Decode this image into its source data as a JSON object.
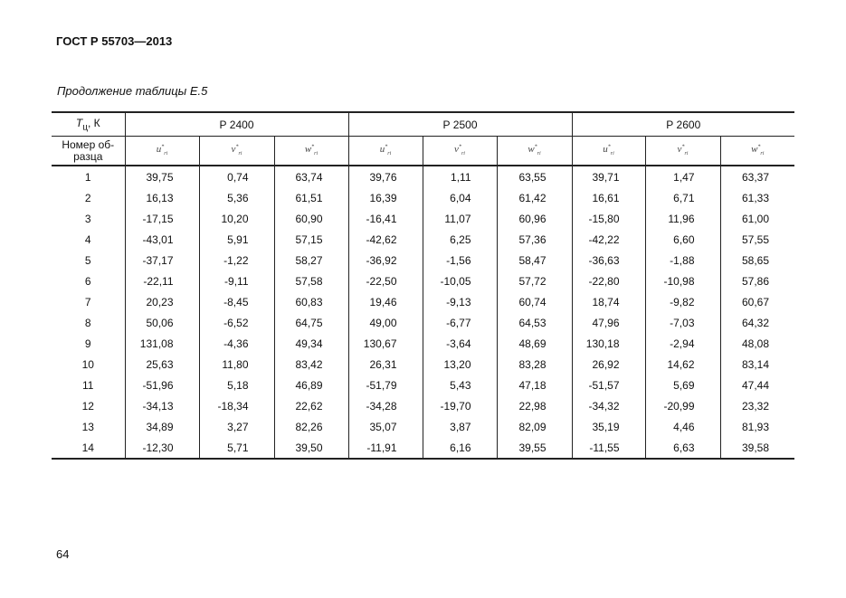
{
  "header": {
    "title": "ГОСТ Р 55703—2013"
  },
  "caption": "Продолжение таблицы Е.5",
  "table": {
    "corner": {
      "main": "T",
      "sub": "ц",
      "rest": ", К"
    },
    "row_label": "Номер об-\nразца",
    "groups": [
      "Р 2400",
      "Р 2500",
      "Р 2600"
    ],
    "columns": [
      {
        "base": "u",
        "sup": "*",
        "sub": "ri"
      },
      {
        "base": "v",
        "sup": "*",
        "sub": "ri"
      },
      {
        "base": "w",
        "sup": "*",
        "sub": "ri"
      },
      {
        "base": "u",
        "sup": "*",
        "sub": "ri"
      },
      {
        "base": "v",
        "sup": "*",
        "sub": "ri"
      },
      {
        "base": "w",
        "sup": "*",
        "sub": "ri"
      },
      {
        "base": "u",
        "sup": "*",
        "sub": "ri"
      },
      {
        "base": "v",
        "sup": "*",
        "sub": "ri"
      },
      {
        "base": "w",
        "sup": "*",
        "sub": "ri"
      }
    ],
    "rows": [
      [
        "1",
        "39,75",
        "0,74",
        "63,74",
        "39,76",
        "1,11",
        "63,55",
        "39,71",
        "1,47",
        "63,37"
      ],
      [
        "2",
        "16,13",
        "5,36",
        "61,51",
        "16,39",
        "6,04",
        "61,42",
        "16,61",
        "6,71",
        "61,33"
      ],
      [
        "3",
        "-17,15",
        "10,20",
        "60,90",
        "-16,41",
        "11,07",
        "60,96",
        "-15,80",
        "11,96",
        "61,00"
      ],
      [
        "4",
        "-43,01",
        "5,91",
        "57,15",
        "-42,62",
        "6,25",
        "57,36",
        "-42,22",
        "6,60",
        "57,55"
      ],
      [
        "5",
        "-37,17",
        "-1,22",
        "58,27",
        "-36,92",
        "-1,56",
        "58,47",
        "-36,63",
        "-1,88",
        "58,65"
      ],
      [
        "6",
        "-22,11",
        "-9,11",
        "57,58",
        "-22,50",
        "-10,05",
        "57,72",
        "-22,80",
        "-10,98",
        "57,86"
      ],
      [
        "7",
        "20,23",
        "-8,45",
        "60,83",
        "19,46",
        "-9,13",
        "60,74",
        "18,74",
        "-9,82",
        "60,67"
      ],
      [
        "8",
        "50,06",
        "-6,52",
        "64,75",
        "49,00",
        "-6,77",
        "64,53",
        "47,96",
        "-7,03",
        "64,32"
      ],
      [
        "9",
        "131,08",
        "-4,36",
        "49,34",
        "130,67",
        "-3,64",
        "48,69",
        "130,18",
        "-2,94",
        "48,08"
      ],
      [
        "10",
        "25,63",
        "11,80",
        "83,42",
        "26,31",
        "13,20",
        "83,28",
        "26,92",
        "14,62",
        "83,14"
      ],
      [
        "11",
        "-51,96",
        "5,18",
        "46,89",
        "-51,79",
        "5,43",
        "47,18",
        "-51,57",
        "5,69",
        "47,44"
      ],
      [
        "12",
        "-34,13",
        "-18,34",
        "22,62",
        "-34,28",
        "-19,70",
        "22,98",
        "-34,32",
        "-20,99",
        "23,32"
      ],
      [
        "13",
        "34,89",
        "3,27",
        "82,26",
        "35,07",
        "3,87",
        "82,09",
        "35,19",
        "4,46",
        "81,93"
      ],
      [
        "14",
        "-12,30",
        "5,71",
        "39,50",
        "-11,91",
        "6,16",
        "39,55",
        "-11,55",
        "6,63",
        "39,58"
      ]
    ]
  },
  "page_number": "64"
}
